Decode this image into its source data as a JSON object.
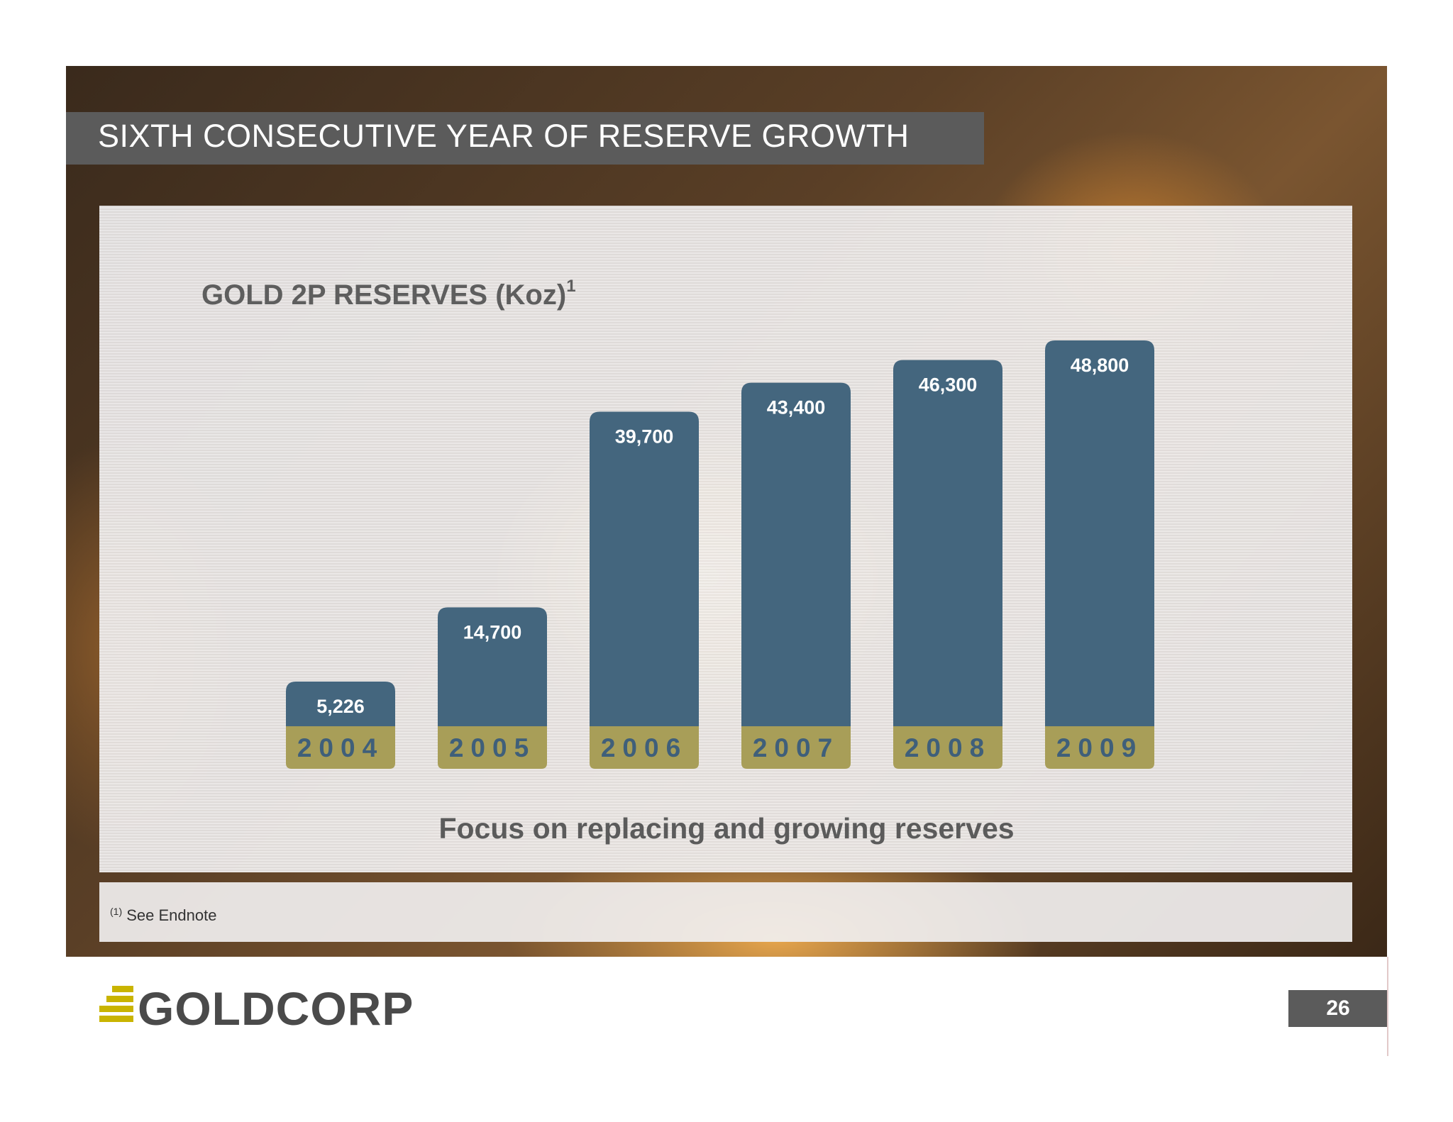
{
  "slide": {
    "title": "SIXTH CONSECUTIVE YEAR OF RESERVE GROWTH",
    "subtitle": "Focus on replacing and growing reserves",
    "footnote_marker": "(1)",
    "footnote": "See Endnote",
    "page_number": "26",
    "logo_text": "GOLDCORP"
  },
  "colors": {
    "bar": "#44667e",
    "year_band": "#a89e58",
    "year_text": "#3f5f7a",
    "value_text": "#ffffff",
    "title_bar": "#5b5b5b",
    "logo_gold": "#c9b400"
  },
  "chart_data": {
    "type": "bar",
    "title": "GOLD 2P RESERVES (Koz)",
    "title_superscript": "1",
    "categories": [
      "2004",
      "2005",
      "2006",
      "2007",
      "2008",
      "2009"
    ],
    "values": [
      5226,
      14700,
      39700,
      43400,
      46300,
      48800
    ],
    "value_labels": [
      "5,226",
      "14,700",
      "39,700",
      "43,400",
      "46,300",
      "48,800"
    ],
    "xlabel": "",
    "ylabel": "",
    "ylim": [
      0,
      50000
    ],
    "grid": false,
    "legend": "none"
  }
}
